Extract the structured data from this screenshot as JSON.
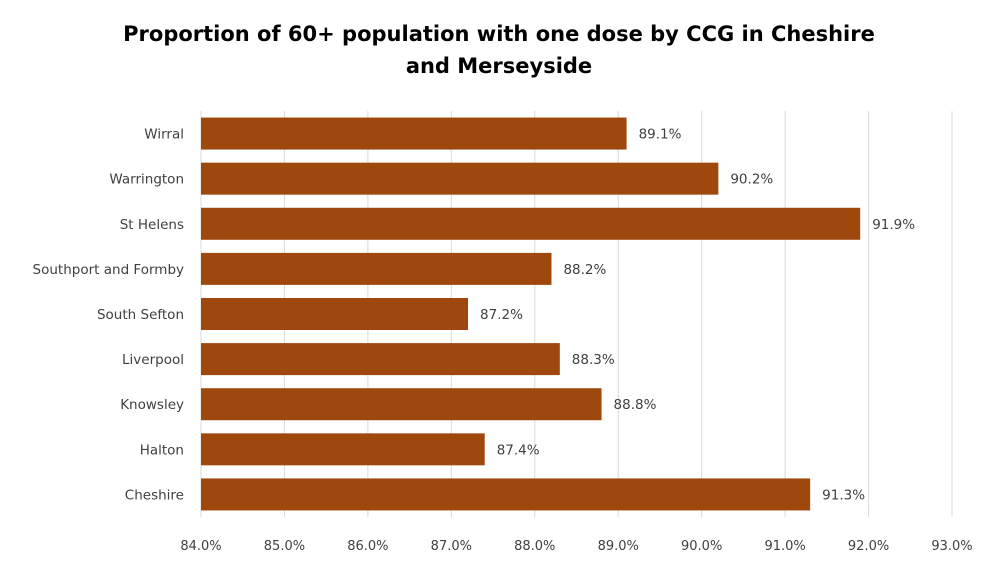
{
  "chart_data": {
    "type": "bar",
    "orientation": "horizontal",
    "title": "Proportion of 60+ population with one dose by CCG in Cheshire and Merseyside",
    "title_lines": [
      "Proportion of 60+ population with one dose by CCG in Cheshire",
      "and Merseyside"
    ],
    "categories": [
      "Wirral",
      "Warrington",
      "St Helens",
      "Southport and Formby",
      "South Sefton",
      "Liverpool",
      "Knowsley",
      "Halton",
      "Cheshire"
    ],
    "values": [
      89.1,
      90.2,
      91.9,
      88.2,
      87.2,
      88.3,
      88.8,
      87.4,
      91.3
    ],
    "data_labels": [
      "89.1%",
      "90.2%",
      "91.9%",
      "88.2%",
      "87.2%",
      "88.3%",
      "88.8%",
      "87.4%",
      "91.3%"
    ],
    "xlim": [
      84.0,
      93.0
    ],
    "xticks": [
      84,
      85,
      86,
      87,
      88,
      89,
      90,
      91,
      92,
      93
    ],
    "xtick_labels": [
      "84.0%",
      "85.0%",
      "86.0%",
      "87.0%",
      "88.0%",
      "89.0%",
      "90.0%",
      "91.0%",
      "92.0%",
      "93.0%"
    ],
    "xlabel": "",
    "ylabel": "",
    "grid": "vertical",
    "legend": "none",
    "bar_color": "#9E480E",
    "grid_color": "#D9D9D9"
  }
}
